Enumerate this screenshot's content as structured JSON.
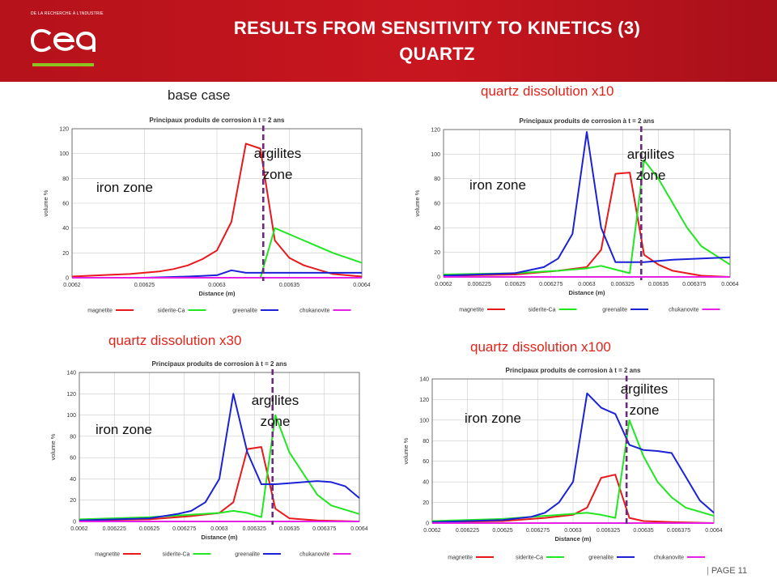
{
  "header": {
    "logo_tagline": "DE LA RECHERCHE À L'INDUSTRIE",
    "logo_text": "cea",
    "title_line1": "RESULTS FROM SENSITIVITY TO KINETICS (3)",
    "title_line2": "QUARTZ"
  },
  "footer": {
    "separator": "|",
    "page_label": "PAGE 11"
  },
  "colors": {
    "magnetite": "#e8191c",
    "siderite_ca": "#22e622",
    "greenalite": "#1b22d6",
    "chukanovite": "#e621e6",
    "interface": "#6b2a7b",
    "header_red": "#c0141d",
    "logo_accent": "#8fc31f"
  },
  "chart_data": [
    {
      "type": "line",
      "label": "base case",
      "title": "Principaux produits de corrosion à t = 2 ans",
      "xlabel": "Distance (m)",
      "ylabel": "volume %",
      "xlim": [
        0.0062,
        0.0064
      ],
      "ylim": [
        0,
        120
      ],
      "x_ticks": [
        "0.0062",
        "0.00625",
        "0.0063",
        "0.00635",
        "0.0064"
      ],
      "y_ticks": [
        "0",
        "20",
        "40",
        "60",
        "80",
        "100",
        "120"
      ],
      "interface_x": 0.006332,
      "zones": {
        "left": "iron zone",
        "right_line1": "argilites",
        "right_line2": "zone"
      },
      "series": [
        {
          "name": "magnetite",
          "x": [
            0.0062,
            0.00622,
            0.00624,
            0.00626,
            0.00627,
            0.00628,
            0.00629,
            0.0063,
            0.00631,
            0.00632,
            0.00633,
            0.00634,
            0.00635,
            0.00636,
            0.00638,
            0.0064
          ],
          "y": [
            1,
            2,
            3,
            5,
            7,
            10,
            15,
            22,
            45,
            108,
            104,
            30,
            16,
            10,
            3,
            1
          ]
        },
        {
          "name": "siderite-Ca",
          "x": [
            0.0062,
            0.00625,
            0.0063,
            0.00632,
            0.00633,
            0.00634,
            0.00636,
            0.00638,
            0.0064
          ],
          "y": [
            0,
            0,
            0,
            0,
            0,
            40,
            30,
            20,
            12
          ]
        },
        {
          "name": "greenalite",
          "x": [
            0.0062,
            0.00625,
            0.00628,
            0.0063,
            0.00631,
            0.00632,
            0.00633,
            0.00635,
            0.0064
          ],
          "y": [
            0,
            0,
            1,
            2,
            6,
            4,
            4,
            4,
            4
          ]
        },
        {
          "name": "chukanovite",
          "x": [
            0.0062,
            0.0064
          ],
          "y": [
            0,
            0
          ]
        }
      ],
      "legend": [
        "magnetite",
        "siderite-Ca",
        "greenalite",
        "chukanovite"
      ]
    },
    {
      "type": "line",
      "label": "quartz dissolution x10",
      "title": "Principaux produits de corrosion à t = 2 ans",
      "xlabel": "Distance (m)",
      "ylabel": "volume %",
      "xlim": [
        0.0062,
        0.0064
      ],
      "ylim": [
        0,
        120
      ],
      "x_ticks": [
        "0.0062",
        "0.006225",
        "0.00625",
        "0.006275",
        "0.0063",
        "0.006325",
        "0.00635",
        "0.006375",
        "0.0064"
      ],
      "y_ticks": [
        "0",
        "20",
        "40",
        "60",
        "80",
        "100",
        "120"
      ],
      "interface_x": 0.006338,
      "zones": {
        "left": "iron zone",
        "right_line1": "argilites",
        "right_line2": "zone"
      },
      "series": [
        {
          "name": "magnetite",
          "x": [
            0.0062,
            0.00625,
            0.00628,
            0.0063,
            0.00631,
            0.00632,
            0.00633,
            0.00634,
            0.00635,
            0.00636,
            0.00638,
            0.0064
          ],
          "y": [
            1,
            2,
            5,
            8,
            22,
            84,
            85,
            18,
            10,
            5,
            1,
            0
          ]
        },
        {
          "name": "siderite-Ca",
          "x": [
            0.0062,
            0.00625,
            0.00628,
            0.0063,
            0.00631,
            0.00632,
            0.00633,
            0.00634,
            0.00635,
            0.00636,
            0.00637,
            0.00638,
            0.0064
          ],
          "y": [
            2,
            3,
            5,
            7,
            9,
            6,
            3,
            95,
            80,
            60,
            40,
            25,
            10
          ]
        },
        {
          "name": "greenalite",
          "x": [
            0.0062,
            0.00625,
            0.00627,
            0.00628,
            0.00629,
            0.0063,
            0.00631,
            0.00632,
            0.00633,
            0.00634,
            0.00635,
            0.00636,
            0.00638,
            0.0064
          ],
          "y": [
            1,
            3,
            8,
            15,
            35,
            118,
            40,
            12,
            12,
            12,
            13,
            14,
            15,
            16
          ]
        },
        {
          "name": "chukanovite",
          "x": [
            0.0062,
            0.0064
          ],
          "y": [
            0,
            0
          ]
        }
      ],
      "legend": [
        "magnetite",
        "siderite-Ca",
        "greenalite",
        "chukanovite"
      ]
    },
    {
      "type": "line",
      "label": "quartz dissolution x30",
      "title": "Principaux produits de corrosion à t = 2 ans",
      "xlabel": "Distance (m)",
      "ylabel": "volume %",
      "xlim": [
        0.0062,
        0.0064
      ],
      "ylim": [
        0,
        140
      ],
      "x_ticks": [
        "0.0062",
        "0.006225",
        "0.00625",
        "0.006275",
        "0.0063",
        "0.006325",
        "0.00635",
        "0.006375",
        "0.0064"
      ],
      "y_ticks": [
        "0",
        "20",
        "40",
        "60",
        "80",
        "100",
        "120",
        "140"
      ],
      "interface_x": 0.006338,
      "zones": {
        "left": "iron zone",
        "right_line1": "argilites",
        "right_line2": "zone"
      },
      "series": [
        {
          "name": "magnetite",
          "x": [
            0.0062,
            0.00625,
            0.00628,
            0.0063,
            0.00631,
            0.00632,
            0.00633,
            0.00634,
            0.00635,
            0.00637,
            0.0064
          ],
          "y": [
            1,
            2,
            5,
            8,
            18,
            68,
            70,
            12,
            3,
            1,
            0
          ]
        },
        {
          "name": "siderite-Ca",
          "x": [
            0.0062,
            0.00625,
            0.0063,
            0.00631,
            0.00632,
            0.00633,
            0.00634,
            0.00635,
            0.00636,
            0.00637,
            0.00638,
            0.0064
          ],
          "y": [
            2,
            4,
            8,
            10,
            8,
            4,
            100,
            65,
            45,
            25,
            15,
            7
          ]
        },
        {
          "name": "greenalite",
          "x": [
            0.0062,
            0.00625,
            0.00627,
            0.00628,
            0.00629,
            0.0063,
            0.00631,
            0.00632,
            0.00633,
            0.00634,
            0.00635,
            0.00636,
            0.00637,
            0.00638,
            0.00639,
            0.0064
          ],
          "y": [
            1,
            3,
            7,
            10,
            18,
            40,
            120,
            65,
            35,
            35,
            36,
            37,
            38,
            37,
            33,
            22
          ]
        },
        {
          "name": "chukanovite",
          "x": [
            0.0062,
            0.0064
          ],
          "y": [
            0,
            0
          ]
        }
      ],
      "legend": [
        "magnetite",
        "siderite-Ca",
        "greenalite",
        "chukanovite"
      ]
    },
    {
      "type": "line",
      "label": "quartz dissolution x100",
      "title": "Principaux produits de corrosion à t = 2 ans",
      "xlabel": "Distance (m)",
      "ylabel": "volume %",
      "xlim": [
        0.0062,
        0.0064
      ],
      "ylim": [
        0,
        140
      ],
      "x_ticks": [
        "0.0062",
        "0.006225",
        "0.00625",
        "0.006275",
        "0.0063",
        "0.006325",
        "0.00635",
        "0.006375",
        "0.0064"
      ],
      "y_ticks": [
        "0",
        "20",
        "40",
        "60",
        "80",
        "100",
        "120",
        "140"
      ],
      "interface_x": 0.006338,
      "zones": {
        "left": "iron zone",
        "right_line1": "argilites",
        "right_line2": "zone"
      },
      "series": [
        {
          "name": "magnetite",
          "x": [
            0.0062,
            0.00625,
            0.00628,
            0.0063,
            0.00631,
            0.00632,
            0.00633,
            0.00634,
            0.00635,
            0.00637,
            0.0064
          ],
          "y": [
            1,
            2,
            5,
            8,
            15,
            44,
            47,
            5,
            2,
            1,
            0
          ]
        },
        {
          "name": "siderite-Ca",
          "x": [
            0.0062,
            0.00625,
            0.0063,
            0.00631,
            0.00632,
            0.00633,
            0.00634,
            0.00635,
            0.00636,
            0.00637,
            0.00638,
            0.0064
          ],
          "y": [
            2,
            4,
            9,
            10,
            8,
            5,
            100,
            65,
            40,
            25,
            15,
            7
          ]
        },
        {
          "name": "greenalite",
          "x": [
            0.0062,
            0.00625,
            0.00627,
            0.00628,
            0.00629,
            0.0063,
            0.00631,
            0.00632,
            0.00633,
            0.00634,
            0.00635,
            0.00636,
            0.00637,
            0.00638,
            0.00639,
            0.0064
          ],
          "y": [
            1,
            3,
            6,
            10,
            20,
            40,
            126,
            112,
            106,
            76,
            71,
            70,
            68,
            45,
            22,
            10
          ]
        },
        {
          "name": "chukanovite",
          "x": [
            0.0062,
            0.0064
          ],
          "y": [
            0,
            0
          ]
        }
      ],
      "legend": [
        "magnetite",
        "siderite-Ca",
        "greenalite",
        "chukanovite"
      ]
    }
  ]
}
